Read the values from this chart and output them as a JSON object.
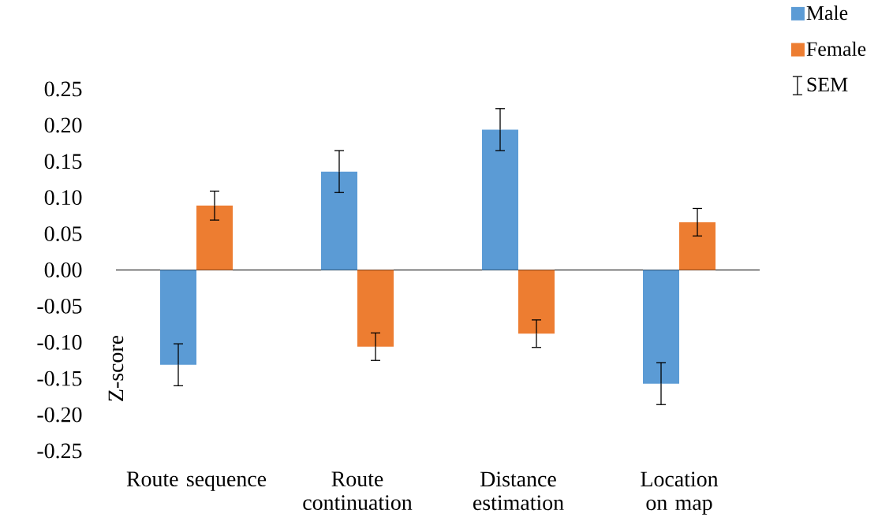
{
  "chart_data": {
    "type": "bar",
    "ylabel": "Z-score",
    "categories": [
      "Route sequence",
      "Route continuation",
      "Distance estimation",
      "Location on map"
    ],
    "series": [
      {
        "name": "Male",
        "color": "#5b9bd5",
        "values": [
          -0.131,
          0.136,
          0.194,
          -0.157
        ],
        "errors": [
          0.029,
          0.029,
          0.029,
          0.029
        ]
      },
      {
        "name": "Female",
        "color": "#ed7d31",
        "values": [
          0.089,
          -0.106,
          -0.088,
          0.066
        ],
        "errors": [
          0.02,
          0.019,
          0.019,
          0.019
        ]
      }
    ],
    "annotations": [
      "SEM"
    ],
    "ylim": [
      -0.25,
      0.25
    ],
    "yticks": [
      {
        "value": -0.25,
        "label": "-0.25"
      },
      {
        "value": -0.2,
        "label": "-0.20"
      },
      {
        "value": -0.15,
        "label": "-0.15"
      },
      {
        "value": -0.1,
        "label": "-0.10"
      },
      {
        "value": -0.05,
        "label": "-0.05"
      },
      {
        "value": 0,
        "label": "0.00"
      },
      {
        "value": 0.05,
        "label": "0.05"
      },
      {
        "value": 0.1,
        "label": "0.10"
      },
      {
        "value": 0.15,
        "label": "0.15"
      },
      {
        "value": 0.2,
        "label": "0.20"
      },
      {
        "value": 0.25,
        "label": "0.25"
      }
    ],
    "legend": "top right"
  }
}
